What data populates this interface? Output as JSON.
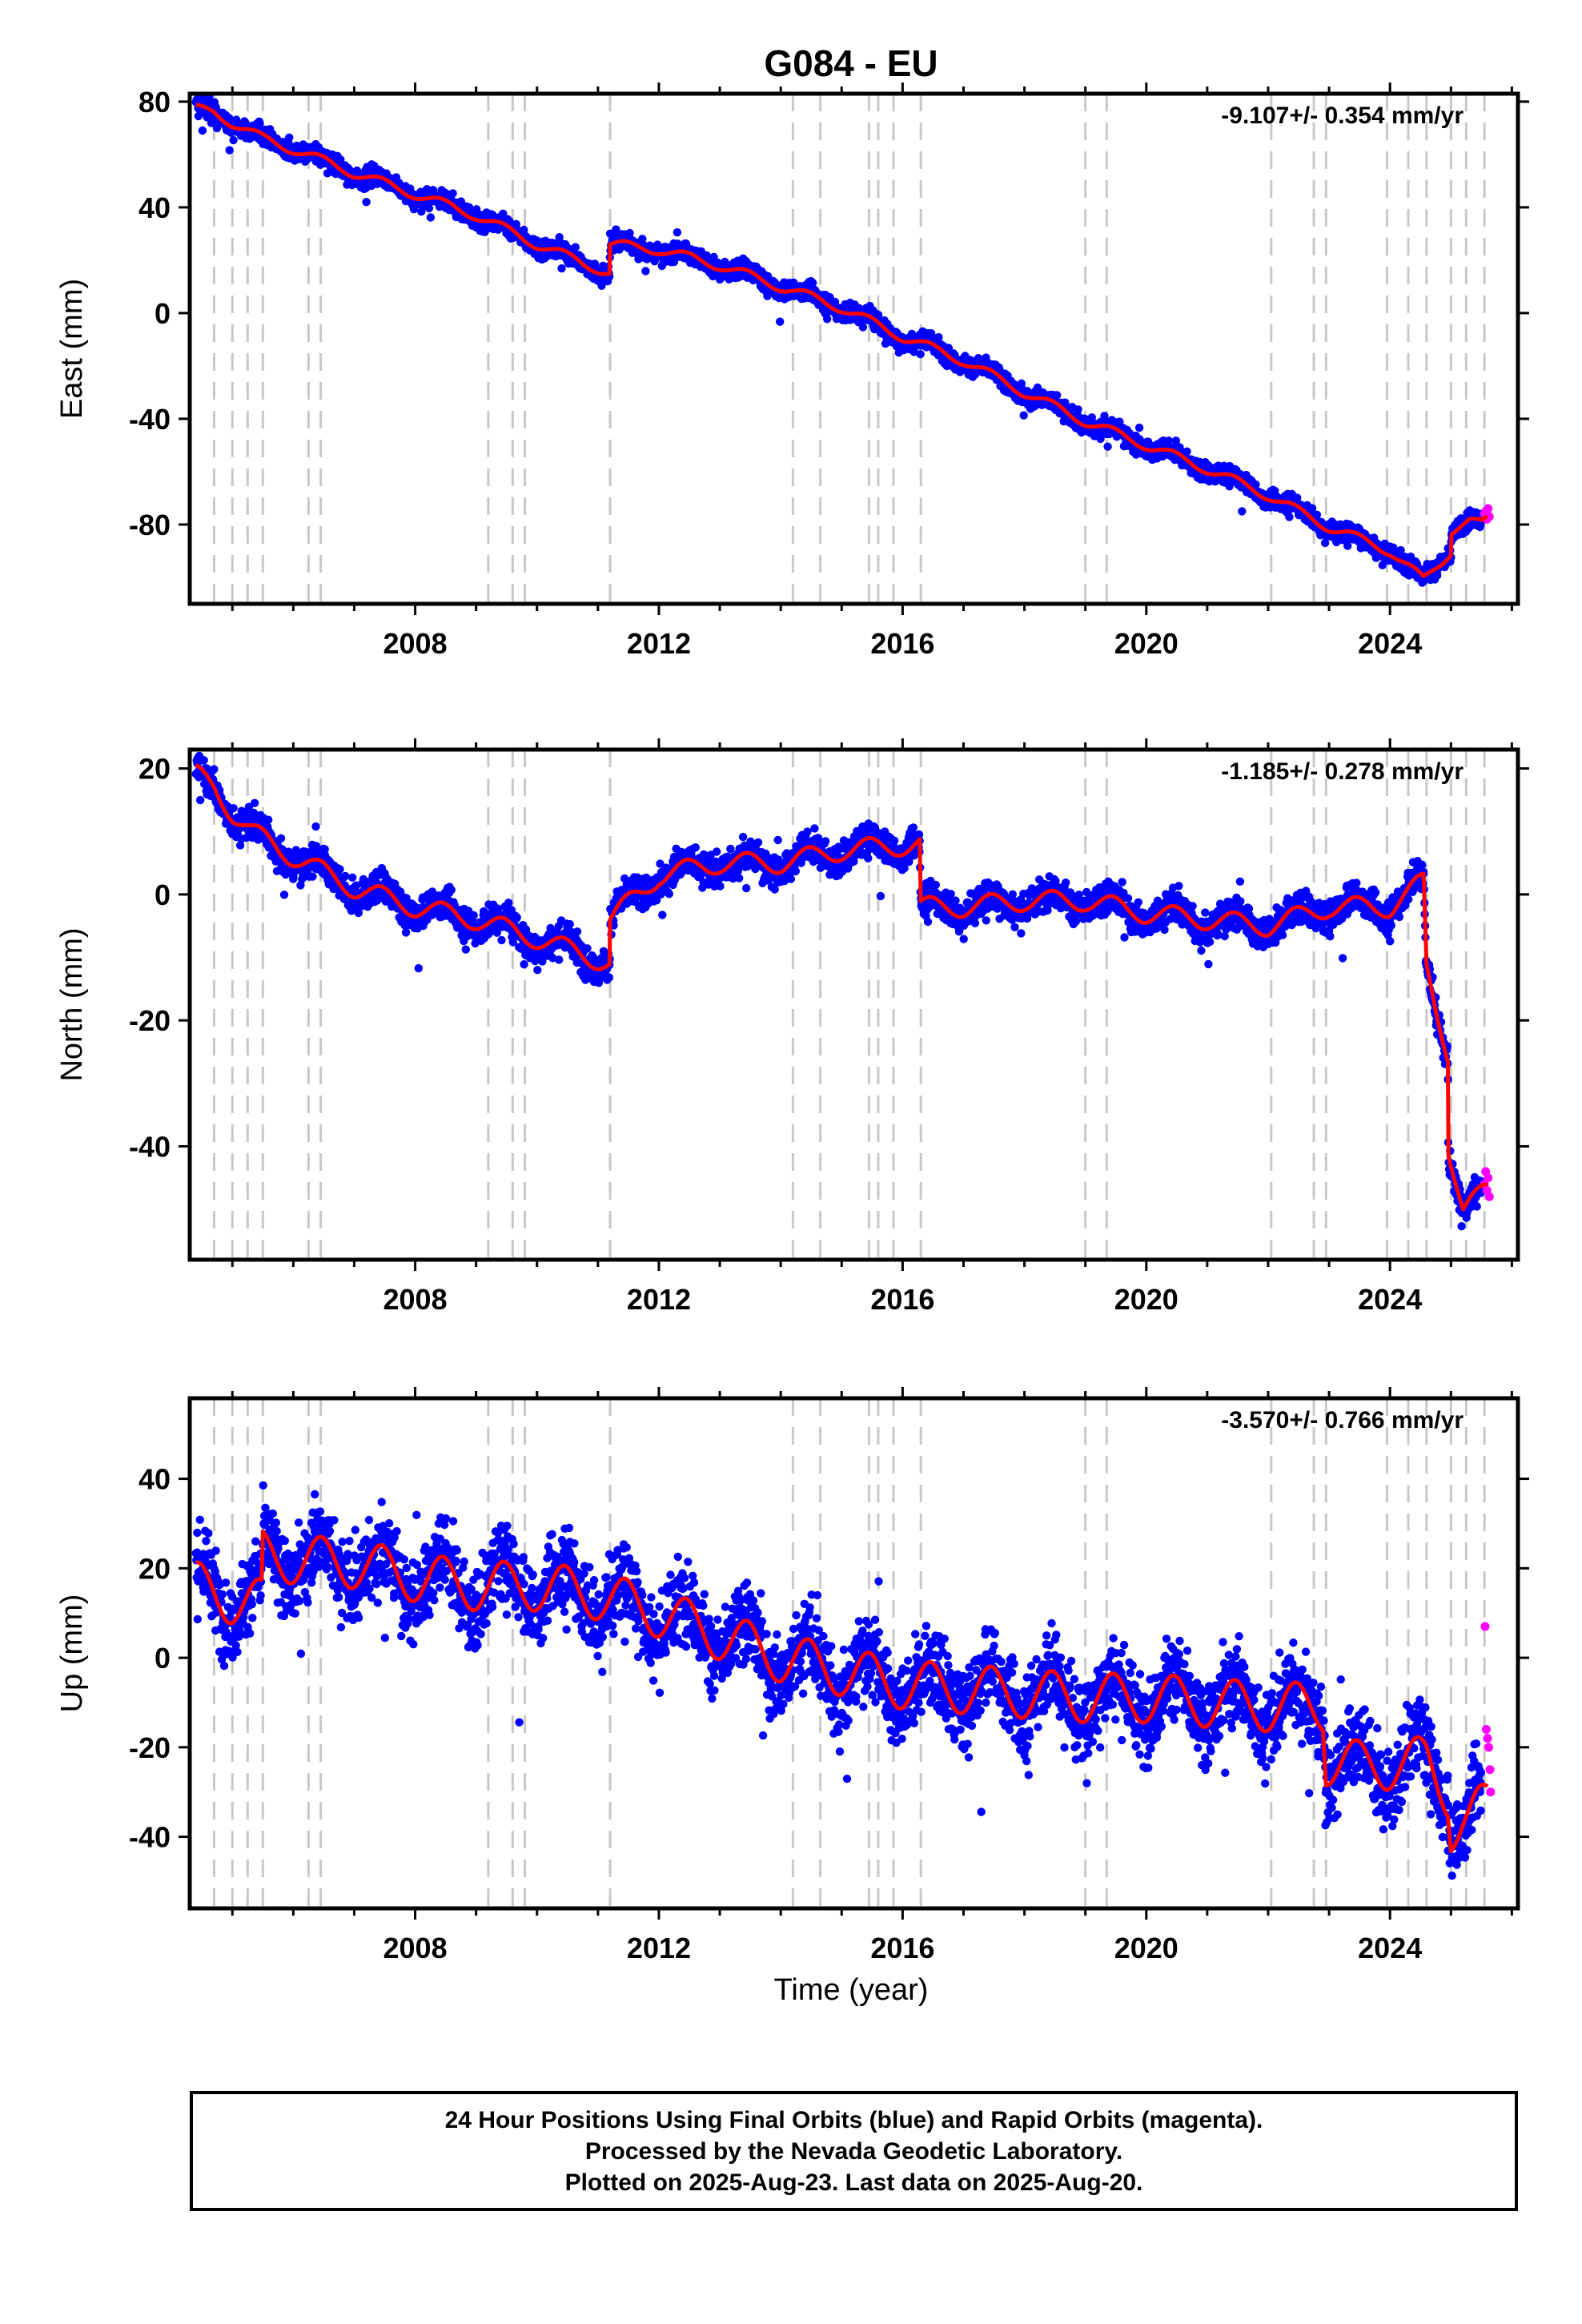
{
  "title": "G084 - EU",
  "xlabel": "Time (year)",
  "caption": [
    "24 Hour Positions Using Final Orbits (blue) and Rapid Orbits (magenta).",
    "Processed by the Nevada Geodetic Laboratory.",
    "Plotted on 2025-Aug-23. Last data on 2025-Aug-20."
  ],
  "colors": {
    "final_orbits": "#0000ff",
    "rapid_orbits": "#ff00ff",
    "model": "#ff0000",
    "event_lines": "#c8c8c8"
  },
  "event_years": [
    2004.7,
    2005.0,
    2005.25,
    2005.5,
    2006.25,
    2006.45,
    2009.2,
    2009.6,
    2009.8,
    2011.2,
    2014.2,
    2014.65,
    2015.45,
    2015.6,
    2015.85,
    2016.3,
    2019.0,
    2019.35,
    2022.05,
    2022.75,
    2022.95,
    2023.95,
    2024.3,
    2024.6,
    2025.0,
    2025.25,
    2025.55
  ],
  "chart_data": [
    {
      "type": "scatter",
      "component": "east",
      "ylabel": "East (mm)",
      "rate_label": "-9.107+/- 0.354 mm/yr",
      "xlim": [
        2004.3,
        2026.1
      ],
      "ylim": [
        -110,
        83
      ],
      "yticks": [
        80,
        40,
        0,
        -40,
        -80
      ],
      "xticks": [
        2008,
        2012,
        2016,
        2020,
        2024
      ],
      "xtick_labels": [
        "2008",
        "2012",
        "2016",
        "2020",
        "2024"
      ],
      "grid": false,
      "series": [
        {
          "name": "Final Orbits",
          "color": "#0000ff",
          "points_from": "model",
          "scatter_mm": 2.5,
          "count": 3600,
          "x_range": [
            2004.4,
            2025.5
          ]
        },
        {
          "name": "Rapid Orbits",
          "color": "#ff00ff",
          "x": [
            2025.55,
            2025.57,
            2025.59,
            2025.61,
            2025.63
          ],
          "y": [
            -76,
            -75,
            -78,
            -74,
            -77
          ]
        },
        {
          "name": "Model",
          "color": "#ff0000",
          "seasonal_amp": 1.8,
          "x": [
            2004.4,
            2004.7,
            2005.0,
            2005.5,
            2006.0,
            2007.0,
            2008.0,
            2009.0,
            2010.0,
            2011.19,
            2011.2,
            2012.0,
            2013.0,
            2014.0,
            2015.0,
            2016.0,
            2017.0,
            2018.0,
            2019.0,
            2020.0,
            2021.0,
            2022.0,
            2023.0,
            2024.0,
            2024.55,
            2024.8,
            2025.0,
            2025.01,
            2025.3,
            2025.5,
            2025.6
          ],
          "y": [
            77,
            76,
            72,
            66,
            62,
            53,
            45,
            37,
            26,
            15,
            26,
            24,
            18,
            10,
            2,
            -9,
            -18,
            -30,
            -41,
            -50,
            -59,
            -69,
            -81,
            -90,
            -101,
            -95,
            -90,
            -82,
            -79,
            -80,
            -78
          ]
        }
      ]
    },
    {
      "type": "scatter",
      "component": "north",
      "ylabel": "North (mm)",
      "rate_label": "-1.185+/- 0.278 mm/yr",
      "xlim": [
        2004.3,
        2026.1
      ],
      "ylim": [
        -58,
        23
      ],
      "yticks": [
        20,
        0,
        -20,
        -40
      ],
      "xticks": [
        2008,
        2012,
        2016,
        2020,
        2024
      ],
      "xtick_labels": [
        "2008",
        "2012",
        "2016",
        "2020",
        "2024"
      ],
      "grid": false,
      "series": [
        {
          "name": "Final Orbits",
          "color": "#0000ff",
          "points_from": "model",
          "scatter_mm": 1.8,
          "count": 3600,
          "x_range": [
            2004.4,
            2025.5
          ]
        },
        {
          "name": "Rapid Orbits",
          "color": "#ff00ff",
          "x": [
            2025.55,
            2025.57,
            2025.59,
            2025.61,
            2025.63
          ],
          "y": [
            -46,
            -44,
            -47,
            -45,
            -48
          ]
        },
        {
          "name": "Model",
          "color": "#ff0000",
          "seasonal_amp": 1.6,
          "x": [
            2004.4,
            2004.7,
            2005.0,
            2005.3,
            2006.0,
            2007.0,
            2008.0,
            2009.0,
            2010.0,
            2011.19,
            2011.2,
            2012.0,
            2013.0,
            2014.0,
            2015.0,
            2016.28,
            2016.3,
            2017.0,
            2018.0,
            2019.0,
            2020.0,
            2021.0,
            2022.0,
            2023.0,
            2024.0,
            2024.55,
            2024.6,
            2024.75,
            2024.95,
            2024.96,
            2025.2,
            2025.6
          ],
          "y": [
            19,
            17,
            13,
            10,
            6,
            1,
            -2,
            -4,
            -7,
            -11,
            -4,
            3,
            5,
            5,
            7,
            8,
            -2,
            -2,
            -1,
            -1,
            -3,
            -4,
            -5,
            -2,
            -2,
            2,
            -12,
            -18,
            -25,
            -40,
            -50,
            -47
          ]
        }
      ]
    },
    {
      "type": "scatter",
      "component": "up",
      "ylabel": "Up (mm)",
      "rate_label": "-3.570+/- 0.766 mm/yr",
      "xlim": [
        2004.3,
        2026.1
      ],
      "ylim": [
        -56,
        58
      ],
      "yticks": [
        40,
        20,
        0,
        -20,
        -40
      ],
      "xticks": [
        2008,
        2012,
        2016,
        2020,
        2024
      ],
      "xtick_labels": [
        "2008",
        "2012",
        "2016",
        "2020",
        "2024"
      ],
      "grid": false,
      "series": [
        {
          "name": "Final Orbits",
          "color": "#0000ff",
          "points_from": "model",
          "scatter_mm": 6.5,
          "count": 3600,
          "x_range": [
            2004.4,
            2025.5
          ]
        },
        {
          "name": "Rapid Orbits",
          "color": "#ff00ff",
          "x": [
            2025.56,
            2025.58,
            2025.6,
            2025.62,
            2025.64,
            2025.65
          ],
          "y": [
            7,
            -16,
            -18,
            -20,
            -25,
            -30
          ]
        },
        {
          "name": "Model",
          "color": "#ff0000",
          "seasonal_amp": 5.5,
          "x": [
            2004.4,
            2005.0,
            2005.48,
            2005.5,
            2006.0,
            2007.0,
            2008.0,
            2009.0,
            2010.0,
            2011.0,
            2012.0,
            2013.0,
            2014.0,
            2015.0,
            2016.0,
            2017.0,
            2018.0,
            2019.0,
            2020.0,
            2021.0,
            2022.0,
            2022.9,
            2022.95,
            2023.5,
            2024.0,
            2024.6,
            2024.95,
            2025.0,
            2025.3,
            2025.6
          ],
          "y": [
            16,
            13,
            12,
            23,
            22,
            21,
            18,
            16,
            16,
            14,
            10,
            5,
            0,
            -3,
            -6,
            -7,
            -8,
            -9,
            -9,
            -10,
            -11,
            -11,
            -23,
            -24,
            -24,
            -23,
            -30,
            -38,
            -37,
            -32
          ]
        }
      ]
    }
  ]
}
